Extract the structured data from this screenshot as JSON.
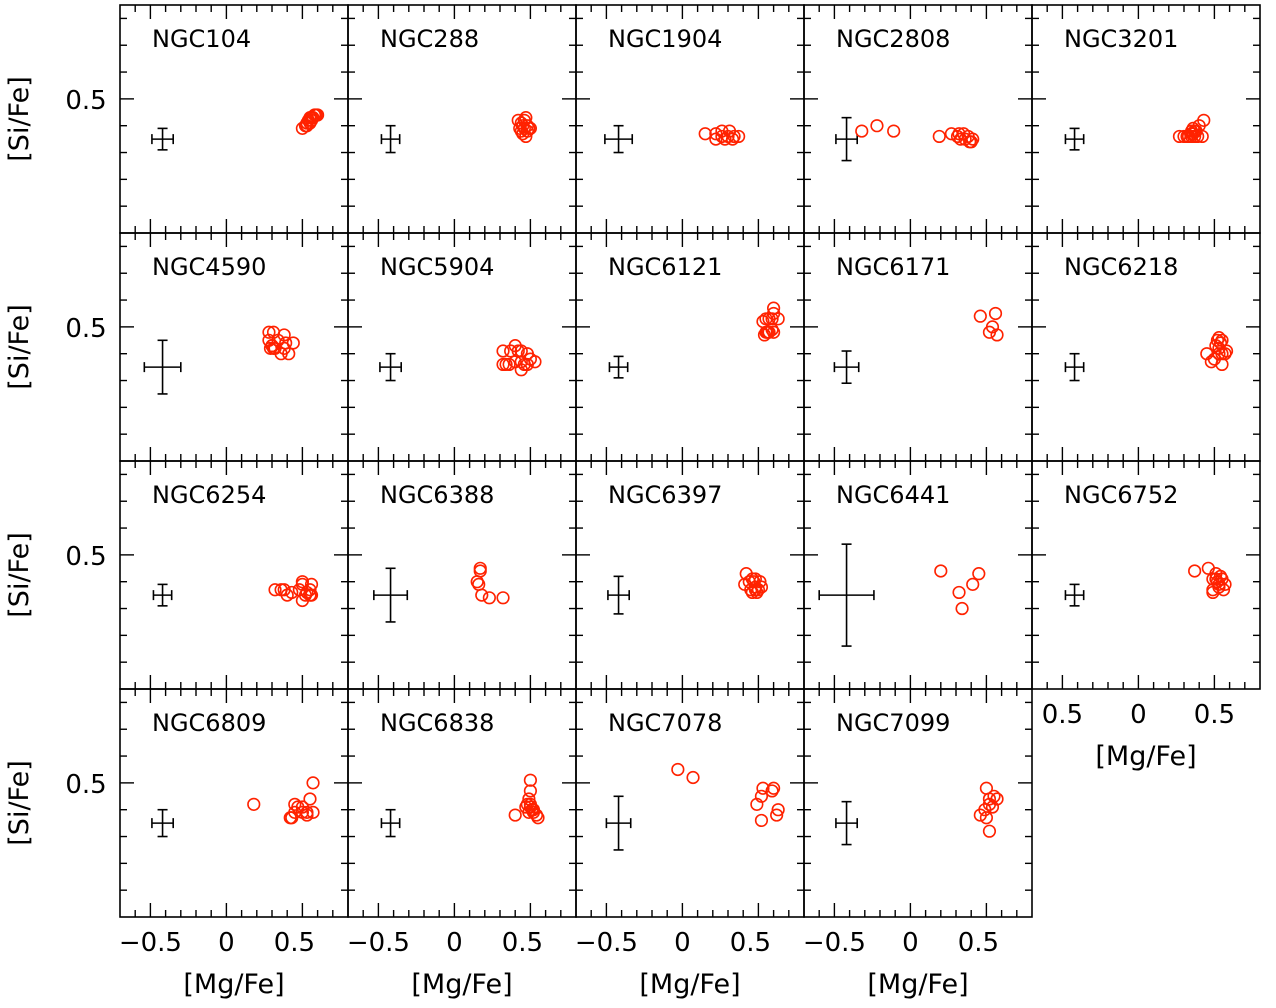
{
  "chart_data": {
    "type": "scatter",
    "xlabel": "[Mg/Fe]",
    "ylabel": "[Si/Fe]",
    "xlim": [
      -0.7,
      0.8
    ],
    "ylim": [
      0,
      0.85
    ],
    "xticks": [
      -0.5,
      0,
      0.5
    ],
    "xtick_labels": [
      "−0.5",
      "0",
      "0.5"
    ],
    "xtick_labels_short": [
      "0.5",
      "0",
      "0.5"
    ],
    "yticks": [
      0.5
    ],
    "ytick_labels": [
      "0.5"
    ],
    "point_color": "#ff2200",
    "errorbar_color": "#000000",
    "grid": false,
    "panels": [
      {
        "name": "NGC104",
        "errorbar": {
          "x": -0.42,
          "y": 0.35,
          "xerr": 0.07,
          "yerr": 0.04
        },
        "points": [
          [
            0.5,
            0.39
          ],
          [
            0.52,
            0.4
          ],
          [
            0.53,
            0.41
          ],
          [
            0.54,
            0.42
          ],
          [
            0.55,
            0.41
          ],
          [
            0.56,
            0.42
          ],
          [
            0.57,
            0.43
          ],
          [
            0.58,
            0.44
          ],
          [
            0.59,
            0.44
          ],
          [
            0.6,
            0.44
          ],
          [
            0.55,
            0.43
          ],
          [
            0.53,
            0.4
          ],
          [
            0.56,
            0.43
          ]
        ]
      },
      {
        "name": "NGC288",
        "errorbar": {
          "x": -0.42,
          "y": 0.35,
          "xerr": 0.06,
          "yerr": 0.05
        },
        "points": [
          [
            0.42,
            0.42
          ],
          [
            0.44,
            0.41
          ],
          [
            0.45,
            0.4
          ],
          [
            0.46,
            0.42
          ],
          [
            0.47,
            0.43
          ],
          [
            0.48,
            0.4
          ],
          [
            0.49,
            0.39
          ],
          [
            0.5,
            0.39
          ],
          [
            0.43,
            0.39
          ],
          [
            0.47,
            0.36
          ],
          [
            0.45,
            0.37
          ],
          [
            0.48,
            0.38
          ],
          [
            0.44,
            0.38
          ],
          [
            0.46,
            0.39
          ]
        ]
      },
      {
        "name": "NGC1904",
        "errorbar": {
          "x": -0.42,
          "y": 0.35,
          "xerr": 0.09,
          "yerr": 0.05
        },
        "points": [
          [
            0.15,
            0.37
          ],
          [
            0.22,
            0.37
          ],
          [
            0.26,
            0.38
          ],
          [
            0.31,
            0.38
          ],
          [
            0.26,
            0.36
          ],
          [
            0.3,
            0.36
          ],
          [
            0.34,
            0.36
          ],
          [
            0.37,
            0.36
          ],
          [
            0.22,
            0.35
          ],
          [
            0.28,
            0.35
          ],
          [
            0.33,
            0.35
          ]
        ]
      },
      {
        "name": "NGC2808",
        "errorbar": {
          "x": -0.42,
          "y": 0.35,
          "xerr": 0.07,
          "yerr": 0.08
        },
        "points": [
          [
            -0.32,
            0.38
          ],
          [
            -0.22,
            0.4
          ],
          [
            -0.11,
            0.38
          ],
          [
            0.19,
            0.36
          ],
          [
            0.27,
            0.37
          ],
          [
            0.32,
            0.37
          ],
          [
            0.35,
            0.37
          ],
          [
            0.38,
            0.36
          ],
          [
            0.36,
            0.35
          ],
          [
            0.41,
            0.35
          ],
          [
            0.39,
            0.34
          ],
          [
            0.4,
            0.34
          ],
          [
            0.33,
            0.35
          ],
          [
            0.31,
            0.36
          ]
        ]
      },
      {
        "name": "NGC3201",
        "errorbar": {
          "x": -0.42,
          "y": 0.35,
          "xerr": 0.06,
          "yerr": 0.04
        },
        "points": [
          [
            0.27,
            0.36
          ],
          [
            0.3,
            0.36
          ],
          [
            0.33,
            0.36
          ],
          [
            0.35,
            0.36
          ],
          [
            0.37,
            0.36
          ],
          [
            0.39,
            0.36
          ],
          [
            0.42,
            0.36
          ],
          [
            0.35,
            0.37
          ],
          [
            0.37,
            0.38
          ],
          [
            0.35,
            0.38
          ],
          [
            0.38,
            0.38
          ],
          [
            0.36,
            0.39
          ],
          [
            0.4,
            0.4
          ],
          [
            0.43,
            0.42
          ],
          [
            0.32,
            0.36
          ],
          [
            0.36,
            0.37
          ]
        ]
      },
      {
        "name": "NGC4590",
        "errorbar": {
          "x": -0.42,
          "y": 0.35,
          "xerr": 0.12,
          "yerr": 0.1
        },
        "points": [
          [
            0.28,
            0.48
          ],
          [
            0.31,
            0.48
          ],
          [
            0.38,
            0.47
          ],
          [
            0.28,
            0.45
          ],
          [
            0.34,
            0.45
          ],
          [
            0.39,
            0.44
          ],
          [
            0.44,
            0.44
          ],
          [
            0.3,
            0.43
          ],
          [
            0.38,
            0.42
          ],
          [
            0.29,
            0.42
          ],
          [
            0.32,
            0.42
          ],
          [
            0.36,
            0.4
          ],
          [
            0.41,
            0.4
          ],
          [
            0.31,
            0.42
          ],
          [
            0.3,
            0.43
          ]
        ]
      },
      {
        "name": "NGC5904",
        "errorbar": {
          "x": -0.42,
          "y": 0.35,
          "xerr": 0.07,
          "yerr": 0.05
        },
        "points": [
          [
            0.32,
            0.41
          ],
          [
            0.37,
            0.41
          ],
          [
            0.4,
            0.43
          ],
          [
            0.42,
            0.41
          ],
          [
            0.44,
            0.41
          ],
          [
            0.48,
            0.4
          ],
          [
            0.5,
            0.38
          ],
          [
            0.53,
            0.37
          ],
          [
            0.44,
            0.37
          ],
          [
            0.46,
            0.36
          ],
          [
            0.4,
            0.37
          ],
          [
            0.32,
            0.36
          ],
          [
            0.34,
            0.36
          ],
          [
            0.36,
            0.36
          ],
          [
            0.44,
            0.34
          ],
          [
            0.48,
            0.36
          ]
        ]
      },
      {
        "name": "NGC6121",
        "errorbar": {
          "x": -0.42,
          "y": 0.35,
          "xerr": 0.06,
          "yerr": 0.04
        },
        "points": [
          [
            0.6,
            0.57
          ],
          [
            0.6,
            0.55
          ],
          [
            0.57,
            0.53
          ],
          [
            0.59,
            0.53
          ],
          [
            0.63,
            0.53
          ],
          [
            0.53,
            0.52
          ],
          [
            0.55,
            0.53
          ],
          [
            0.59,
            0.49
          ],
          [
            0.56,
            0.48
          ],
          [
            0.55,
            0.48
          ],
          [
            0.57,
            0.48
          ],
          [
            0.54,
            0.47
          ],
          [
            0.6,
            0.48
          ]
        ]
      },
      {
        "name": "NGC6171",
        "errorbar": {
          "x": -0.42,
          "y": 0.35,
          "xerr": 0.08,
          "yerr": 0.06
        },
        "points": [
          [
            0.46,
            0.54
          ],
          [
            0.56,
            0.55
          ],
          [
            0.54,
            0.5
          ],
          [
            0.52,
            0.48
          ],
          [
            0.57,
            0.47
          ]
        ]
      },
      {
        "name": "NGC6218",
        "errorbar": {
          "x": -0.42,
          "y": 0.35,
          "xerr": 0.06,
          "yerr": 0.05
        },
        "points": [
          [
            0.53,
            0.46
          ],
          [
            0.52,
            0.45
          ],
          [
            0.55,
            0.45
          ],
          [
            0.54,
            0.44
          ],
          [
            0.51,
            0.43
          ],
          [
            0.53,
            0.42
          ],
          [
            0.58,
            0.41
          ],
          [
            0.53,
            0.4
          ],
          [
            0.55,
            0.4
          ],
          [
            0.45,
            0.4
          ],
          [
            0.5,
            0.38
          ],
          [
            0.48,
            0.37
          ],
          [
            0.55,
            0.36
          ],
          [
            0.57,
            0.4
          ]
        ]
      },
      {
        "name": "NGC6254",
        "errorbar": {
          "x": -0.42,
          "y": 0.35,
          "xerr": 0.06,
          "yerr": 0.04
        },
        "points": [
          [
            0.32,
            0.37
          ],
          [
            0.36,
            0.37
          ],
          [
            0.38,
            0.37
          ],
          [
            0.5,
            0.4
          ],
          [
            0.5,
            0.39
          ],
          [
            0.56,
            0.39
          ],
          [
            0.48,
            0.37
          ],
          [
            0.55,
            0.37
          ],
          [
            0.43,
            0.36
          ],
          [
            0.53,
            0.36
          ],
          [
            0.56,
            0.35
          ],
          [
            0.4,
            0.35
          ],
          [
            0.5,
            0.33
          ],
          [
            0.55,
            0.35
          ],
          [
            0.52,
            0.35
          ]
        ]
      },
      {
        "name": "NGC6388",
        "errorbar": {
          "x": -0.42,
          "y": 0.35,
          "xerr": 0.11,
          "yerr": 0.1
        },
        "points": [
          [
            0.17,
            0.45
          ],
          [
            0.17,
            0.44
          ],
          [
            0.15,
            0.4
          ],
          [
            0.16,
            0.39
          ],
          [
            0.18,
            0.35
          ],
          [
            0.23,
            0.34
          ],
          [
            0.32,
            0.34
          ]
        ]
      },
      {
        "name": "NGC6397",
        "errorbar": {
          "x": -0.42,
          "y": 0.35,
          "xerr": 0.07,
          "yerr": 0.07
        },
        "points": [
          [
            0.42,
            0.43
          ],
          [
            0.46,
            0.41
          ],
          [
            0.48,
            0.41
          ],
          [
            0.44,
            0.4
          ],
          [
            0.47,
            0.4
          ],
          [
            0.51,
            0.4
          ],
          [
            0.41,
            0.39
          ],
          [
            0.48,
            0.38
          ],
          [
            0.52,
            0.38
          ],
          [
            0.45,
            0.37
          ],
          [
            0.48,
            0.37
          ],
          [
            0.46,
            0.36
          ],
          [
            0.49,
            0.36
          ],
          [
            0.5,
            0.37
          ]
        ]
      },
      {
        "name": "NGC6441",
        "errorbar": {
          "x": -0.42,
          "y": 0.35,
          "xerr": 0.18,
          "yerr": 0.19
        },
        "points": [
          [
            0.2,
            0.44
          ],
          [
            0.45,
            0.43
          ],
          [
            0.41,
            0.39
          ],
          [
            0.32,
            0.36
          ],
          [
            0.34,
            0.3
          ]
        ]
      },
      {
        "name": "NGC6752",
        "errorbar": {
          "x": -0.42,
          "y": 0.35,
          "xerr": 0.06,
          "yerr": 0.04
        },
        "points": [
          [
            0.37,
            0.44
          ],
          [
            0.46,
            0.45
          ],
          [
            0.51,
            0.43
          ],
          [
            0.54,
            0.42
          ],
          [
            0.49,
            0.41
          ],
          [
            0.51,
            0.41
          ],
          [
            0.55,
            0.41
          ],
          [
            0.52,
            0.4
          ],
          [
            0.53,
            0.39
          ],
          [
            0.57,
            0.39
          ],
          [
            0.53,
            0.38
          ],
          [
            0.49,
            0.37
          ],
          [
            0.56,
            0.37
          ],
          [
            0.49,
            0.36
          ]
        ]
      },
      {
        "name": "NGC6809",
        "errorbar": {
          "x": -0.42,
          "y": 0.35,
          "xerr": 0.07,
          "yerr": 0.05
        },
        "points": [
          [
            0.18,
            0.42
          ],
          [
            0.45,
            0.42
          ],
          [
            0.47,
            0.41
          ],
          [
            0.55,
            0.44
          ],
          [
            0.57,
            0.5
          ],
          [
            0.5,
            0.41
          ],
          [
            0.45,
            0.39
          ],
          [
            0.5,
            0.39
          ],
          [
            0.53,
            0.39
          ],
          [
            0.57,
            0.39
          ],
          [
            0.42,
            0.37
          ],
          [
            0.43,
            0.37
          ],
          [
            0.53,
            0.38
          ]
        ]
      },
      {
        "name": "NGC6838",
        "errorbar": {
          "x": -0.42,
          "y": 0.35,
          "xerr": 0.06,
          "yerr": 0.05
        },
        "points": [
          [
            0.5,
            0.51
          ],
          [
            0.5,
            0.47
          ],
          [
            0.49,
            0.44
          ],
          [
            0.48,
            0.42
          ],
          [
            0.5,
            0.42
          ],
          [
            0.47,
            0.41
          ],
          [
            0.5,
            0.41
          ],
          [
            0.52,
            0.4
          ],
          [
            0.49,
            0.39
          ],
          [
            0.52,
            0.39
          ],
          [
            0.54,
            0.38
          ],
          [
            0.4,
            0.38
          ],
          [
            0.55,
            0.37
          ],
          [
            0.51,
            0.4
          ]
        ]
      },
      {
        "name": "NGC7078",
        "errorbar": {
          "x": -0.42,
          "y": 0.35,
          "xerr": 0.08,
          "yerr": 0.1
        },
        "points": [
          [
            -0.03,
            0.55
          ],
          [
            0.07,
            0.52
          ],
          [
            0.53,
            0.48
          ],
          [
            0.59,
            0.47
          ],
          [
            0.6,
            0.48
          ],
          [
            0.52,
            0.45
          ],
          [
            0.49,
            0.42
          ],
          [
            0.63,
            0.4
          ],
          [
            0.62,
            0.38
          ],
          [
            0.52,
            0.36
          ]
        ]
      },
      {
        "name": "NGC7099",
        "errorbar": {
          "x": -0.42,
          "y": 0.35,
          "xerr": 0.07,
          "yerr": 0.08
        },
        "points": [
          [
            0.5,
            0.48
          ],
          [
            0.55,
            0.45
          ],
          [
            0.52,
            0.44
          ],
          [
            0.57,
            0.44
          ],
          [
            0.52,
            0.42
          ],
          [
            0.49,
            0.4
          ],
          [
            0.54,
            0.41
          ],
          [
            0.46,
            0.38
          ],
          [
            0.5,
            0.37
          ],
          [
            0.52,
            0.32
          ]
        ]
      }
    ]
  }
}
